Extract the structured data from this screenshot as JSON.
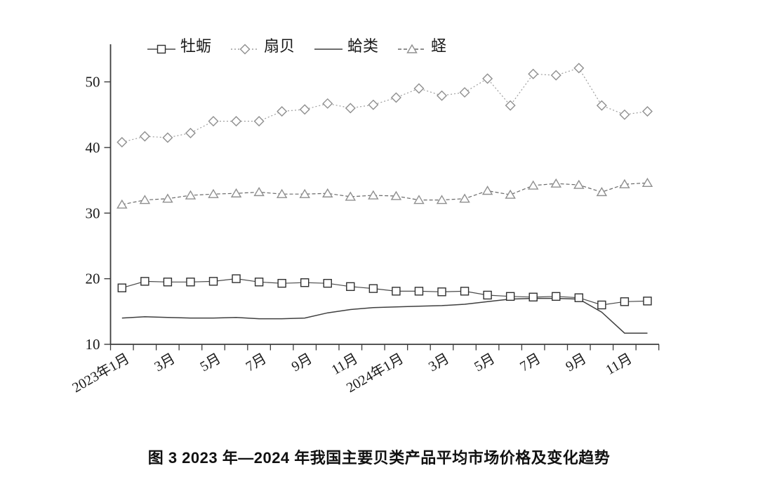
{
  "page": {
    "background": "#ffffff"
  },
  "caption": "图 3 2023 年—2024 年我国主要贝类产品平均市场价格及变化趋势",
  "axis": {
    "color": "#3c3c3c",
    "tick_color": "#3c3c3c",
    "label_color": "#1a1a1a"
  },
  "chart_data": {
    "type": "line",
    "title": "",
    "xlabel": "",
    "ylabel": "",
    "ylim": [
      10,
      52.5
    ],
    "yticks": [
      10,
      20,
      30,
      40,
      50
    ],
    "grid": false,
    "legend_position": "top",
    "categories_count": 24,
    "x_tick_label_every": 2,
    "x_tick_labels": [
      "2023年1月",
      "3月",
      "5月",
      "7月",
      "9月",
      "11月",
      "2024年1月",
      "3月",
      "5月",
      "7月",
      "9月",
      "11月"
    ],
    "series": [
      {
        "name": "牡蛎",
        "marker": "square",
        "line": "solid",
        "color": "#4a4a4a",
        "marker_color": "#2f2f2f",
        "values": [
          18.6,
          19.6,
          19.5,
          19.5,
          19.6,
          20.0,
          19.5,
          19.3,
          19.4,
          19.3,
          18.8,
          18.5,
          18.1,
          18.1,
          18.0,
          18.1,
          17.5,
          17.3,
          17.2,
          17.3,
          17.1,
          16.0,
          16.5,
          16.6
        ]
      },
      {
        "name": "扇贝",
        "marker": "diamond",
        "line": "dotted",
        "color": "#9e9e9e",
        "marker_color": "#8f8f8f",
        "values": [
          40.8,
          41.7,
          41.5,
          42.2,
          44.0,
          44.0,
          44.0,
          45.5,
          45.8,
          46.7,
          46.0,
          46.5,
          47.6,
          49.0,
          47.9,
          48.4,
          50.5,
          46.4,
          51.2,
          51.0,
          52.1,
          46.4,
          45.0,
          45.5
        ]
      },
      {
        "name": "蛤类",
        "marker": "none",
        "line": "solid",
        "color": "#3f3f3f",
        "values": [
          14.0,
          14.2,
          14.1,
          14.0,
          14.0,
          14.1,
          13.9,
          13.9,
          14.0,
          14.8,
          15.3,
          15.6,
          15.7,
          15.8,
          15.9,
          16.1,
          16.5,
          16.9,
          17.0,
          17.0,
          16.9,
          14.9,
          11.7,
          11.7
        ]
      },
      {
        "name": "蛏",
        "marker": "triangle",
        "line": "dashed",
        "color": "#6a6a6a",
        "marker_color": "#8f8f8f",
        "values": [
          31.3,
          32.0,
          32.2,
          32.7,
          32.9,
          33.0,
          33.2,
          32.9,
          32.9,
          33.0,
          32.5,
          32.7,
          32.6,
          32.0,
          32.0,
          32.2,
          33.4,
          32.8,
          34.2,
          34.5,
          34.3,
          33.2,
          34.4,
          34.6
        ]
      }
    ]
  }
}
